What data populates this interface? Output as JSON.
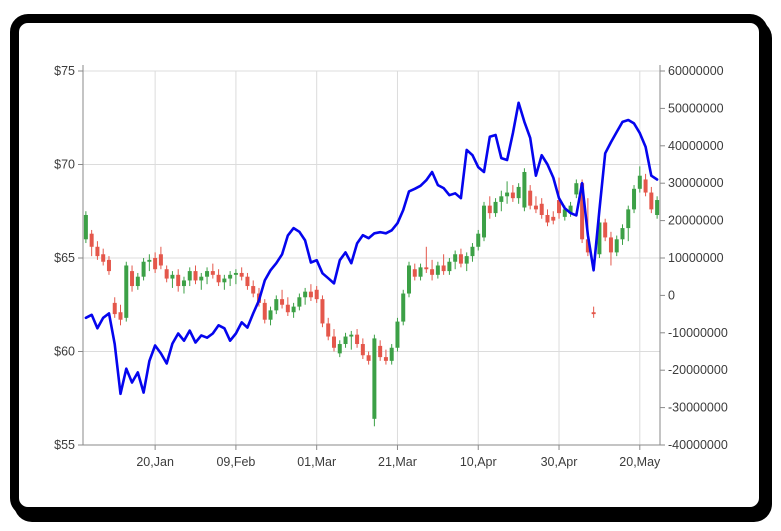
{
  "window": {
    "background": "#ffffff",
    "frame_color": "#000000"
  },
  "styles": {
    "grid_color": "#dcdcdc",
    "axis_color": "#8a8a8a",
    "tick_color": "#8a8a8a",
    "label_color": "#3c3c3c"
  },
  "chart_data": {
    "type": "candlestick+line",
    "title": "",
    "legend": "none",
    "grid": true,
    "x_axis": {
      "unit": "daily-candle index",
      "count": 100,
      "tick_positions": [
        12,
        26,
        40,
        54,
        68,
        82,
        96
      ],
      "tick_labels": [
        "20,Jan",
        "09,Feb",
        "01,Mar",
        "21,Mar",
        "10,Apr",
        "30,Apr",
        "20,May"
      ]
    },
    "left_axis": {
      "min": 55,
      "max": 75,
      "tick_step": 5,
      "tick_labels_top_to_bottom": [
        "$75",
        "$70",
        "$65",
        "$60",
        "$55"
      ]
    },
    "right_axis": {
      "min": -40000000,
      "max": 60000000,
      "tick_step": 10000000,
      "tick_labels_top_to_bottom": [
        "60000000",
        "50000000",
        "40000000",
        "30000000",
        "20000000",
        "10000000",
        "0",
        "-10000000",
        "-20000000",
        "-30000000",
        "-40000000"
      ]
    },
    "series": [
      {
        "id": "price-candles",
        "type": "candlestick",
        "axis": "left",
        "up_color": "#3ca046",
        "down_color": "#e4574b",
        "ohlc": [
          [
            66.0,
            67.5,
            65.8,
            67.3
          ],
          [
            66.3,
            66.5,
            65.1,
            65.6
          ],
          [
            65.6,
            65.9,
            64.9,
            65.1
          ],
          [
            65.2,
            65.5,
            64.6,
            64.8
          ],
          [
            64.9,
            65.1,
            64.1,
            64.3
          ],
          [
            62.6,
            62.9,
            61.8,
            62.0
          ],
          [
            62.1,
            62.5,
            61.4,
            61.7
          ],
          [
            61.8,
            64.8,
            61.6,
            64.6
          ],
          [
            64.3,
            64.6,
            63.2,
            63.5
          ],
          [
            63.5,
            64.2,
            63.3,
            64.0
          ],
          [
            64.0,
            65.0,
            63.8,
            64.8
          ],
          [
            64.8,
            65.2,
            64.3,
            64.9
          ],
          [
            65.0,
            65.3,
            64.2,
            64.4
          ],
          [
            65.2,
            65.6,
            64.4,
            64.6
          ],
          [
            64.4,
            64.6,
            63.7,
            63.9
          ],
          [
            63.9,
            64.3,
            63.4,
            64.1
          ],
          [
            64.1,
            64.4,
            63.2,
            63.5
          ],
          [
            63.5,
            64.0,
            63.1,
            63.8
          ],
          [
            63.8,
            64.5,
            63.5,
            64.3
          ],
          [
            64.3,
            64.6,
            63.6,
            63.8
          ],
          [
            63.8,
            64.2,
            63.3,
            64.0
          ],
          [
            64.0,
            64.5,
            63.6,
            64.3
          ],
          [
            64.3,
            64.7,
            63.9,
            64.1
          ],
          [
            64.1,
            64.4,
            63.5,
            63.7
          ],
          [
            63.7,
            64.1,
            63.3,
            63.9
          ],
          [
            63.9,
            64.3,
            63.5,
            64.1
          ],
          [
            64.1,
            64.4,
            63.6,
            64.2
          ],
          [
            64.2,
            64.5,
            63.8,
            64.0
          ],
          [
            64.0,
            64.2,
            63.3,
            63.5
          ],
          [
            63.5,
            63.8,
            62.9,
            63.1
          ],
          [
            63.1,
            63.4,
            62.4,
            62.6
          ],
          [
            62.6,
            62.8,
            61.5,
            61.7
          ],
          [
            61.7,
            62.4,
            61.4,
            62.2
          ],
          [
            62.2,
            63.0,
            62.0,
            62.8
          ],
          [
            62.8,
            63.3,
            62.3,
            62.5
          ],
          [
            62.5,
            62.9,
            61.9,
            62.1
          ],
          [
            62.1,
            62.6,
            61.8,
            62.4
          ],
          [
            62.4,
            63.1,
            62.2,
            62.9
          ],
          [
            62.9,
            63.4,
            62.5,
            63.2
          ],
          [
            63.2,
            63.6,
            62.7,
            62.9
          ],
          [
            63.3,
            63.5,
            62.6,
            62.8
          ],
          [
            62.8,
            63.0,
            61.3,
            61.5
          ],
          [
            61.5,
            61.8,
            60.6,
            60.8
          ],
          [
            60.8,
            61.2,
            60.0,
            60.2
          ],
          [
            59.9,
            60.6,
            59.7,
            60.4
          ],
          [
            60.4,
            61.0,
            60.2,
            60.8
          ],
          [
            60.8,
            61.1,
            60.1,
            60.9
          ],
          [
            60.9,
            61.2,
            60.2,
            60.4
          ],
          [
            60.4,
            60.7,
            59.6,
            59.8
          ],
          [
            59.8,
            60.0,
            59.3,
            59.5
          ],
          [
            56.4,
            60.9,
            56.0,
            60.7
          ],
          [
            60.3,
            60.6,
            59.5,
            59.7
          ],
          [
            59.7,
            60.1,
            59.3,
            59.5
          ],
          [
            59.5,
            60.4,
            59.3,
            60.2
          ],
          [
            60.2,
            61.8,
            60.0,
            61.6
          ],
          [
            61.6,
            63.3,
            61.4,
            63.1
          ],
          [
            63.1,
            64.8,
            62.9,
            64.6
          ],
          [
            64.4,
            64.7,
            63.8,
            64.0
          ],
          [
            64.0,
            64.7,
            63.8,
            64.5
          ],
          [
            64.5,
            65.6,
            64.2,
            64.4
          ],
          [
            64.4,
            64.9,
            63.8,
            64.1
          ],
          [
            64.1,
            64.8,
            63.9,
            64.6
          ],
          [
            64.6,
            65.2,
            64.1,
            64.3
          ],
          [
            64.3,
            65.0,
            64.1,
            64.8
          ],
          [
            64.8,
            65.4,
            64.4,
            65.2
          ],
          [
            65.2,
            65.5,
            64.5,
            64.7
          ],
          [
            64.7,
            65.3,
            64.3,
            65.1
          ],
          [
            65.1,
            65.8,
            64.8,
            65.6
          ],
          [
            65.6,
            66.5,
            65.4,
            66.3
          ],
          [
            66.1,
            68.0,
            65.9,
            67.8
          ],
          [
            67.8,
            68.3,
            67.1,
            67.4
          ],
          [
            67.4,
            68.2,
            67.2,
            68.0
          ],
          [
            68.0,
            68.6,
            67.5,
            68.3
          ],
          [
            68.3,
            69.1,
            67.9,
            68.5
          ],
          [
            68.5,
            68.9,
            68.0,
            68.2
          ],
          [
            68.2,
            69.0,
            67.9,
            68.8
          ],
          [
            67.7,
            69.8,
            67.5,
            69.6
          ],
          [
            68.6,
            68.9,
            67.6,
            67.8
          ],
          [
            67.8,
            68.3,
            67.4,
            67.6
          ],
          [
            67.9,
            68.2,
            67.1,
            67.3
          ],
          [
            67.3,
            67.6,
            66.7,
            66.9
          ],
          [
            67.2,
            67.5,
            66.8,
            67.0
          ],
          [
            68.1,
            69.3,
            67.1,
            67.4
          ],
          [
            67.2,
            67.8,
            67.0,
            67.6
          ],
          [
            67.4,
            68.0,
            67.2,
            67.8
          ],
          [
            68.4,
            69.2,
            68.2,
            69.0
          ],
          [
            69.0,
            69.2,
            65.8,
            66.0
          ],
          [
            66.0,
            68.2,
            65.1,
            65.3
          ],
          [
            62.1,
            62.4,
            61.8,
            62.0
          ],
          [
            65.2,
            67.1,
            65.0,
            66.9
          ],
          [
            66.9,
            67.1,
            65.9,
            66.1
          ],
          [
            66.1,
            66.4,
            64.6,
            65.3
          ],
          [
            65.3,
            66.2,
            65.1,
            66.0
          ],
          [
            66.0,
            66.8,
            65.7,
            66.6
          ],
          [
            66.6,
            67.8,
            65.9,
            67.6
          ],
          [
            67.6,
            68.9,
            67.4,
            68.7
          ],
          [
            68.7,
            69.9,
            68.5,
            69.4
          ],
          [
            69.2,
            69.5,
            68.3,
            68.5
          ],
          [
            68.5,
            68.8,
            67.4,
            67.6
          ],
          [
            67.3,
            68.3,
            67.1,
            68.1
          ]
        ]
      },
      {
        "id": "overlay-line",
        "type": "line",
        "axis": "right",
        "color": "#0505ee",
        "width": 2.6,
        "values": [
          -6000000,
          -5200000,
          -8800000,
          -6000000,
          -4800000,
          -13000000,
          -26300000,
          -19600000,
          -23300000,
          -20600000,
          -26000000,
          -17500000,
          -13400000,
          -15500000,
          -18200000,
          -12900000,
          -10200000,
          -12100000,
          -9400000,
          -12600000,
          -10700000,
          -11300000,
          -10200000,
          -8000000,
          -8800000,
          -12100000,
          -10200000,
          -7200000,
          -8600000,
          -4800000,
          -1300000,
          4000000,
          6700000,
          8600000,
          11000000,
          16000000,
          18000000,
          17000000,
          14700000,
          8800000,
          9400000,
          5900000,
          4600000,
          3200000,
          9400000,
          11500000,
          8600000,
          13900000,
          16100000,
          15300000,
          16600000,
          16900000,
          16600000,
          17400000,
          19300000,
          22800000,
          27800000,
          28500000,
          29300000,
          30800000,
          33000000,
          29500000,
          28700000,
          26800000,
          27300000,
          26000000,
          38900000,
          37500000,
          34300000,
          33000000,
          42400000,
          42900000,
          36700000,
          36200000,
          43400000,
          51500000,
          46400000,
          42100000,
          32000000,
          37500000,
          35000000,
          31500000,
          26000000,
          23300000,
          22000000,
          21400000,
          30000000,
          16100000,
          6700000,
          22800000,
          38000000,
          41000000,
          43700000,
          46400000,
          46900000,
          46000000,
          43400000,
          39700000,
          32000000,
          31000000
        ]
      }
    ]
  }
}
